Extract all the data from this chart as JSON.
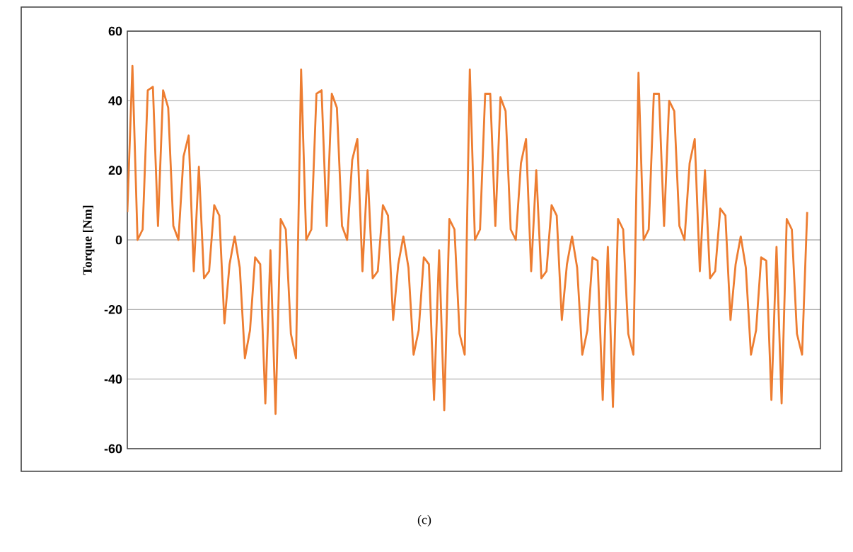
{
  "chart_data": {
    "type": "line",
    "ylabel": "Torque [Nm]",
    "annotations": [
      "(c)"
    ],
    "categories": [
      null,
      null,
      null,
      null,
      null,
      null,
      null,
      null,
      null,
      null,
      null,
      null,
      null,
      null,
      null,
      null,
      null,
      null,
      null,
      null,
      null,
      null,
      null,
      null,
      null,
      null,
      null,
      null,
      null,
      null,
      null,
      null,
      null,
      null,
      null,
      null,
      null,
      null,
      null,
      null,
      null,
      null,
      null,
      null,
      null,
      null,
      null,
      null,
      null,
      null,
      null,
      null,
      null,
      null,
      null,
      null,
      null,
      null,
      null,
      null,
      null,
      null,
      null,
      null,
      null,
      null,
      null,
      null,
      null,
      null,
      null,
      null,
      null,
      null,
      null,
      null,
      null,
      null,
      null,
      null,
      null,
      null,
      null,
      null,
      null,
      null,
      null,
      null,
      null,
      null,
      null,
      null,
      null,
      null,
      null,
      null,
      null,
      null,
      null,
      null,
      null,
      null,
      null,
      null,
      null,
      null,
      null,
      null,
      null,
      null,
      null,
      null,
      null,
      null,
      null,
      null,
      null,
      null,
      null,
      null,
      null,
      null,
      null,
      null,
      null,
      null,
      null,
      null,
      null,
      null,
      null,
      null,
      null,
      null
    ],
    "series": [
      {
        "color": "#ed7d31",
        "values": [
          8,
          50,
          0,
          3,
          43,
          44,
          4,
          43,
          38,
          4,
          0,
          24,
          30,
          -9,
          21,
          -11,
          -9,
          10,
          7,
          -24,
          -7,
          1,
          -8,
          -34,
          -26,
          -5,
          -7,
          -47,
          -3,
          -50,
          6,
          3,
          -27,
          -34,
          49,
          0,
          3,
          42,
          43,
          4,
          42,
          38,
          4,
          0,
          23,
          29,
          -9,
          20,
          -11,
          -9,
          10,
          7,
          -23,
          -7,
          1,
          -8,
          -33,
          -26,
          -5,
          -7,
          -46,
          -3,
          -49,
          6,
          3,
          -27,
          -33,
          49,
          0,
          3,
          42,
          42,
          4,
          41,
          37,
          3,
          0,
          22,
          29,
          -9,
          20,
          -11,
          -9,
          10,
          7,
          -23,
          -7,
          1,
          -8,
          -33,
          -26,
          -5,
          -6,
          -46,
          -2,
          -48,
          6,
          3,
          -27,
          -33,
          48,
          0,
          3,
          42,
          42,
          4,
          40,
          37,
          4,
          0,
          22,
          29,
          -9,
          20,
          -11,
          -9,
          9,
          7,
          -23,
          -7,
          1,
          -8,
          -33,
          -26,
          -5,
          -6,
          -46,
          -2,
          -47,
          6,
          3,
          -27,
          -33,
          8
        ]
      }
    ],
    "ylim": [
      -60,
      60
    ],
    "yticks": [
      -60,
      -40,
      -20,
      0,
      20,
      40,
      60
    ],
    "grid": "y",
    "line_style": "solid",
    "marker": "none"
  }
}
